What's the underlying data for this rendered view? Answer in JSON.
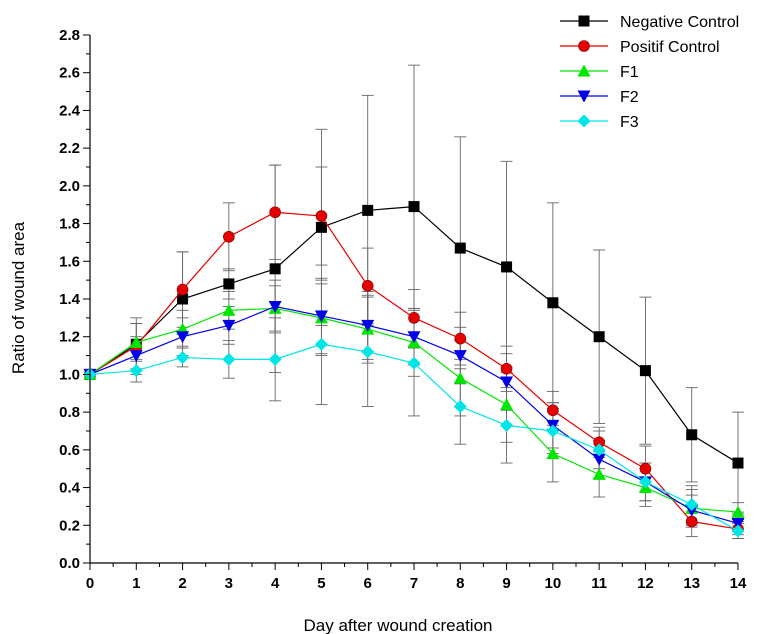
{
  "chart_data": {
    "type": "line",
    "title": "",
    "xlabel": "Day after wound creation",
    "ylabel": "Ratio of wound area",
    "xlim": [
      0,
      14
    ],
    "ylim": [
      0,
      2.8
    ],
    "x_ticks": [
      "0",
      "1",
      "2",
      "3",
      "4",
      "5",
      "6",
      "7",
      "8",
      "9",
      "10",
      "11",
      "12",
      "13",
      "14"
    ],
    "y_ticks": [
      "0.0",
      "0.2",
      "0.4",
      "0.6",
      "0.8",
      "1.0",
      "1.2",
      "1.4",
      "1.6",
      "1.8",
      "2.0",
      "2.2",
      "2.4",
      "2.6",
      "2.8"
    ],
    "grid": false,
    "legend_position": "top-right",
    "x": [
      0,
      1,
      2,
      3,
      4,
      5,
      6,
      7,
      8,
      9,
      10,
      11,
      12,
      13,
      14
    ],
    "series": [
      {
        "name": "Negative Control",
        "color": "#000000",
        "marker": "square",
        "values": [
          1.0,
          1.16,
          1.4,
          1.48,
          1.56,
          1.78,
          1.87,
          1.89,
          1.67,
          1.57,
          1.38,
          1.2,
          1.02,
          0.68,
          0.53
        ],
        "error": [
          0.0,
          0.14,
          0.25,
          0.08,
          0.55,
          0.52,
          0.61,
          0.75,
          0.59,
          0.56,
          0.53,
          0.46,
          0.39,
          0.25,
          0.27
        ]
      },
      {
        "name": "Positif Control",
        "color": "#e60000",
        "marker": "circle",
        "values": [
          1.0,
          1.15,
          1.45,
          1.73,
          1.86,
          1.84,
          1.47,
          1.3,
          1.19,
          1.03,
          0.81,
          0.64,
          0.5,
          0.22,
          0.18
        ],
        "error": [
          0.0,
          0.12,
          0.2,
          0.18,
          0.25,
          0.26,
          0.2,
          0.15,
          0.14,
          0.12,
          0.1,
          0.08,
          0.12,
          0.08,
          0.05
        ]
      },
      {
        "name": "F1",
        "color": "#00e600",
        "marker": "triangle-up",
        "values": [
          1.0,
          1.17,
          1.24,
          1.34,
          1.35,
          1.3,
          1.24,
          1.17,
          0.98,
          0.84,
          0.58,
          0.47,
          0.4,
          0.29,
          0.27
        ],
        "error": [
          0.0,
          0.1,
          0.1,
          0.1,
          0.12,
          0.2,
          0.18,
          0.18,
          0.2,
          0.2,
          0.15,
          0.12,
          0.1,
          0.1,
          0.05
        ]
      },
      {
        "name": "F2",
        "color": "#0000e6",
        "marker": "triangle-down",
        "values": [
          1.0,
          1.1,
          1.2,
          1.26,
          1.36,
          1.31,
          1.26,
          1.2,
          1.1,
          0.96,
          0.73,
          0.55,
          0.43,
          0.28,
          0.21
        ],
        "error": [
          0.0,
          0.1,
          0.1,
          0.1,
          0.14,
          0.2,
          0.18,
          0.15,
          0.15,
          0.15,
          0.12,
          0.1,
          0.1,
          0.08,
          0.06
        ]
      },
      {
        "name": "F3",
        "color": "#00e6e6",
        "marker": "diamond",
        "values": [
          1.0,
          1.02,
          1.09,
          1.08,
          1.08,
          1.16,
          1.12,
          1.06,
          0.83,
          0.73,
          0.7,
          0.6,
          0.43,
          0.31,
          0.17
        ],
        "error": [
          0.0,
          0.06,
          0.05,
          0.1,
          0.22,
          0.32,
          0.29,
          0.28,
          0.2,
          0.2,
          0.12,
          0.1,
          0.1,
          0.1,
          0.04
        ]
      }
    ]
  }
}
